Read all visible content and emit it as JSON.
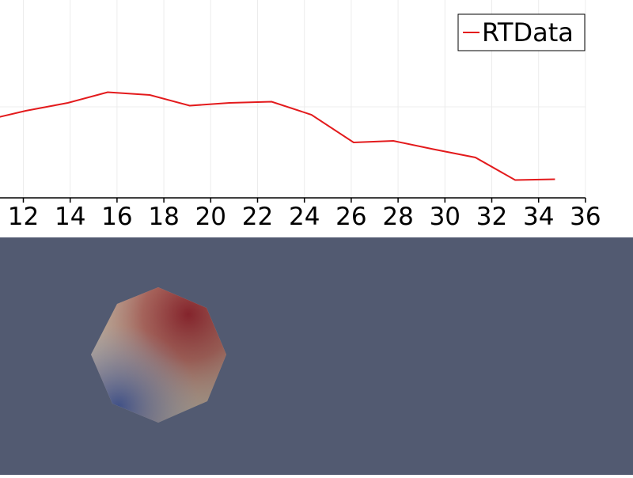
{
  "chart_data": {
    "type": "line",
    "series": [
      {
        "name": "RTData",
        "color": "#e31a1c",
        "x": [
          10.3,
          12.1,
          13.9,
          15.6,
          17.4,
          19.1,
          20.8,
          22.6,
          24.3,
          26.1,
          27.8,
          29.5,
          31.3,
          33.0,
          34.7
        ],
        "y": [
          0.495,
          0.52,
          0.54,
          0.567,
          0.56,
          0.533,
          0.54,
          0.543,
          0.51,
          0.44,
          0.444,
          0.423,
          0.402,
          0.345,
          0.347
        ]
      }
    ],
    "xlim": [
      10,
      36
    ],
    "ylim": [
      0.3,
      0.8
    ],
    "xticks": [
      "12",
      "14",
      "16",
      "18",
      "20",
      "22",
      "24",
      "26",
      "28",
      "30",
      "32",
      "34",
      "36"
    ],
    "legend_position": "top-right",
    "grid": true
  },
  "render_view": {
    "background": "#525a71",
    "object": "octagon-sphere"
  }
}
